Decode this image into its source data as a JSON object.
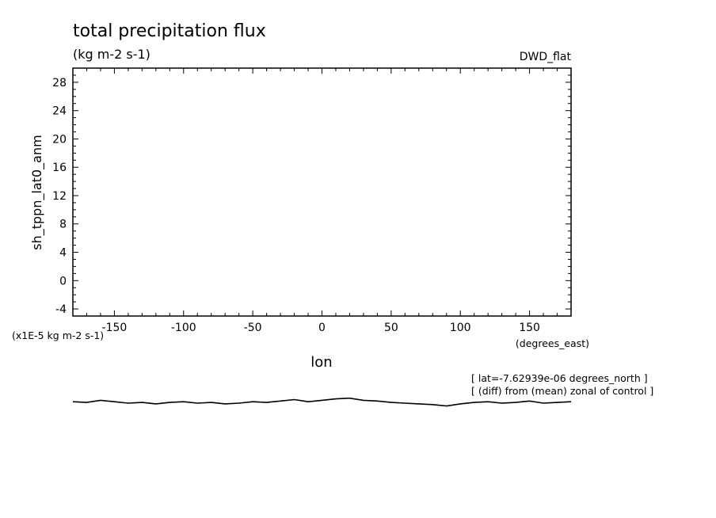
{
  "chart_data": {
    "type": "line",
    "title": "total precipitation flux",
    "subtitle": "(kg m-2 s-1)",
    "dataset_label": "DWD_flat",
    "xlabel": "lon",
    "x_units": "(degrees_east)",
    "ylabel": "sh_tppn_lat0_anm",
    "y_scale_note": "(x1E-5 kg m-2 s-1)",
    "annotations": [
      "[ lat=-7.62939e-06 degrees_north ]",
      "[ (diff) from (mean) zonal of control ]"
    ],
    "xlim": [
      -180,
      180
    ],
    "ylim": [
      -5,
      30
    ],
    "x_ticks": [
      -150,
      -100,
      -50,
      0,
      50,
      100,
      150
    ],
    "x_tick_labels": [
      "-150",
      "-100",
      "-50",
      "0",
      "50",
      "100",
      "150"
    ],
    "y_ticks": [
      -4,
      0,
      4,
      8,
      12,
      16,
      20,
      24,
      28
    ],
    "y_tick_labels": [
      "-4",
      "0",
      "4",
      "8",
      "12",
      "16",
      "20",
      "24",
      "28"
    ],
    "grid": false,
    "series": [
      {
        "x": [
          -180,
          -170,
          -160,
          -150,
          -140,
          -130,
          -120,
          -110,
          -100,
          -90,
          -80,
          -70,
          -60,
          -50,
          -40,
          -30,
          -20,
          -10,
          0,
          10,
          20,
          30,
          40,
          50,
          60,
          70,
          80,
          90,
          100,
          110,
          120,
          130,
          140,
          150,
          160,
          170,
          180
        ],
        "values": [
          -17.1,
          -17.2,
          -16.9,
          -17.1,
          -17.3,
          -17.2,
          -17.4,
          -17.2,
          -17.1,
          -17.3,
          -17.2,
          -17.4,
          -17.3,
          -17.1,
          -17.2,
          -17.0,
          -16.8,
          -17.1,
          -16.9,
          -16.7,
          -16.6,
          -16.9,
          -17.0,
          -17.2,
          -17.3,
          -17.4,
          -17.5,
          -17.7,
          -17.4,
          -17.2,
          -17.1,
          -17.3,
          -17.2,
          -17.0,
          -17.3,
          -17.2,
          -17.1
        ]
      }
    ]
  }
}
